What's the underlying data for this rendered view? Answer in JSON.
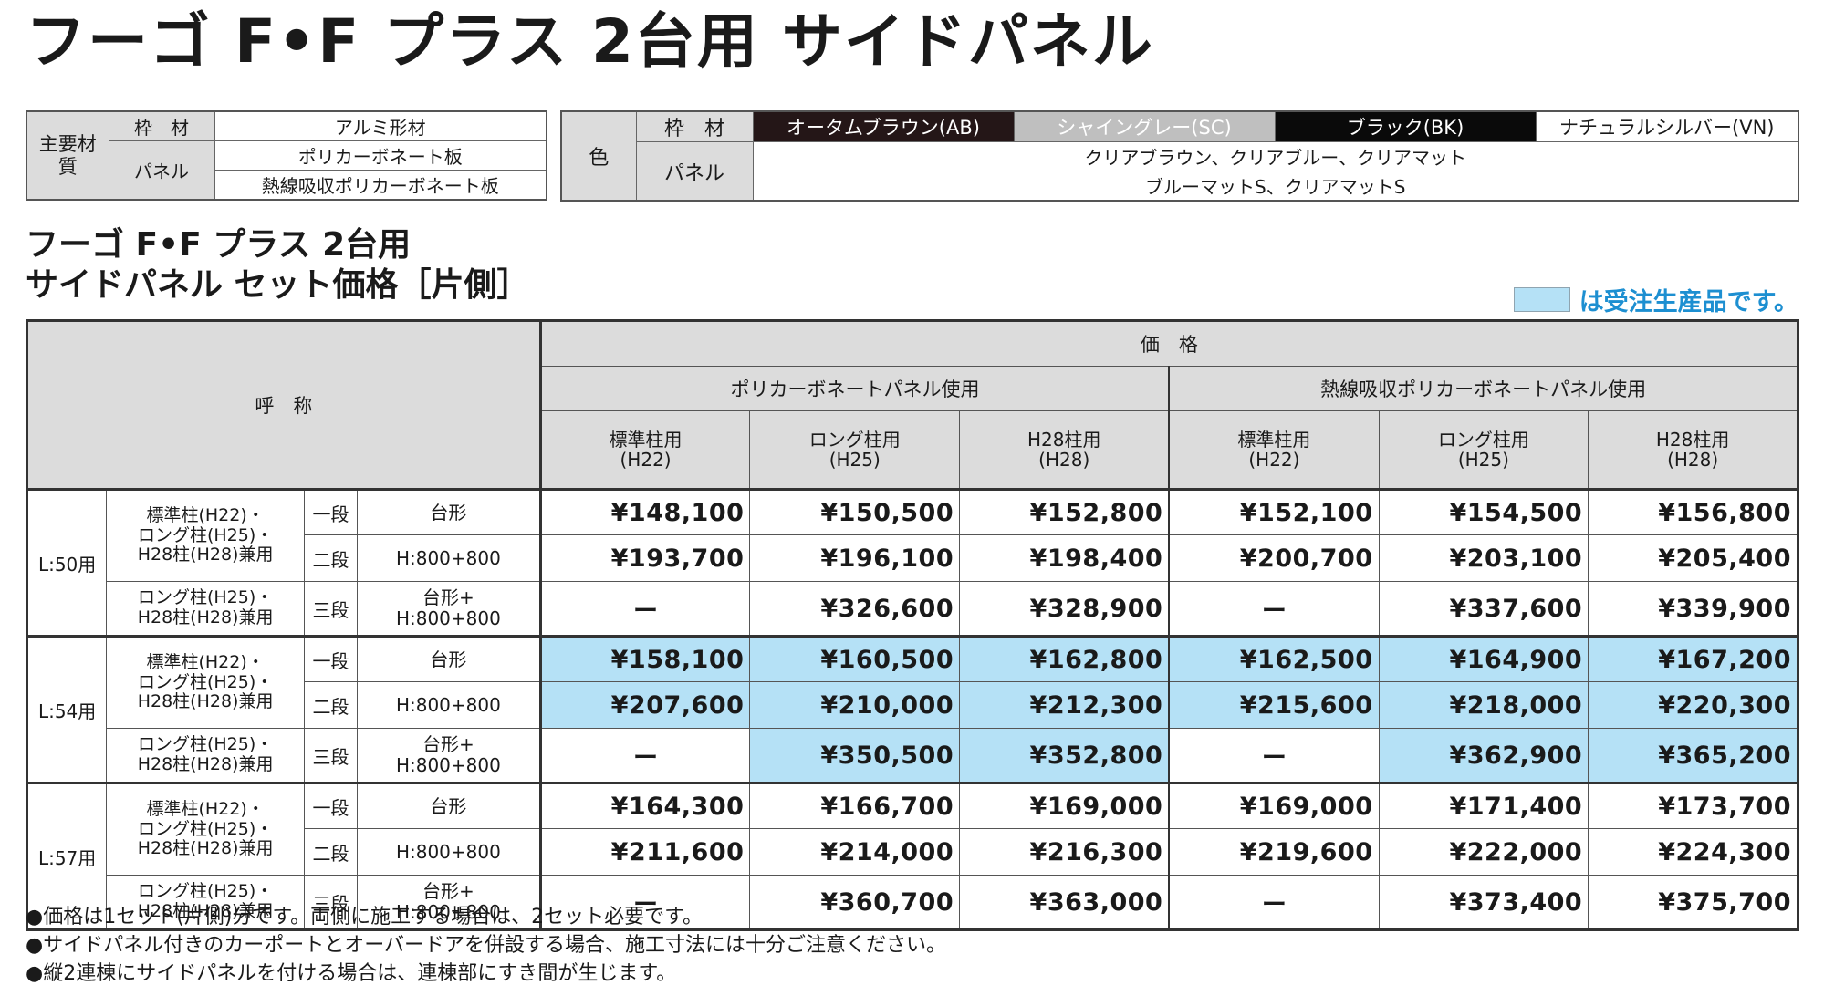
{
  "title": "フーゴ F•F プラス 2台用 サイドパネル",
  "materials": {
    "label": "主要材質",
    "rows": [
      {
        "part": "枠　材",
        "value": "アルミ形材"
      },
      {
        "part": "パネル",
        "values": [
          "ポリカーボネート板",
          "熱線吸収ポリカーボネート板"
        ]
      }
    ]
  },
  "colors": {
    "label": "色",
    "frame_label": "枠　材",
    "frame_colors": [
      {
        "name": "オータムブラウン(AB)",
        "bg": "#241617"
      },
      {
        "name": "シャイングレー(SC)",
        "bg": "#bfbfbf"
      },
      {
        "name": "ブラック(BK)",
        "bg": "#0a0a0a"
      },
      {
        "name": "ナチュラルシルバー(VN)",
        "bg": "#ffffff"
      }
    ],
    "panel_label": "パネル",
    "panel_colors": [
      "クリアブラウン、クリアブルー、クリアマット",
      "ブルーマットS、クリアマットS"
    ]
  },
  "subtitle": {
    "line1": "フーゴ F•F プラス 2台用",
    "line2": "サイドパネル セット価格［片側］"
  },
  "legend": {
    "text": "は受注生産品です。",
    "color": "#b5e1f6"
  },
  "price_table": {
    "col_name": "呼　称",
    "price_label": "価　格",
    "groups": [
      "ポリカーボネートパネル使用",
      "熱線吸収ポリカーボネートパネル使用"
    ],
    "post_types": [
      {
        "l1": "標準柱用",
        "l2": "(H22)"
      },
      {
        "l1": "ロング柱用",
        "l2": "(H25)"
      },
      {
        "l1": "H28柱用",
        "l2": "(H28)"
      }
    ],
    "sections": [
      {
        "size": "L:50用",
        "post_a": [
          "標準柱(H22)・",
          "ロング柱(H25)・",
          "H28柱(H28)兼用"
        ],
        "post_b": [
          "ロング柱(H25)・",
          "H28柱(H28)兼用"
        ],
        "rows": [
          {
            "tier": "一段",
            "type": [
              "台形"
            ],
            "prices": [
              "¥148,100",
              "¥150,500",
              "¥152,800",
              "¥152,100",
              "¥154,500",
              "¥156,800"
            ]
          },
          {
            "tier": "二段",
            "type": [
              "H:800+800"
            ],
            "prices": [
              "¥193,700",
              "¥196,100",
              "¥198,400",
              "¥200,700",
              "¥203,100",
              "¥205,400"
            ]
          },
          {
            "tier": "三段",
            "type": [
              "台形+",
              "H:800+800"
            ],
            "prices": [
              "ー",
              "¥326,600",
              "¥328,900",
              "ー",
              "¥337,600",
              "¥339,900"
            ]
          }
        ]
      },
      {
        "size": "L:54用",
        "post_a": [
          "標準柱(H22)・",
          "ロング柱(H25)・",
          "H28柱(H28)兼用"
        ],
        "post_b": [
          "ロング柱(H25)・",
          "H28柱(H28)兼用"
        ],
        "rows": [
          {
            "tier": "一段",
            "type": [
              "台形"
            ],
            "prices": [
              "¥158,100",
              "¥160,500",
              "¥162,800",
              "¥162,500",
              "¥164,900",
              "¥167,200"
            ]
          },
          {
            "tier": "二段",
            "type": [
              "H:800+800"
            ],
            "prices": [
              "¥207,600",
              "¥210,000",
              "¥212,300",
              "¥215,600",
              "¥218,000",
              "¥220,300"
            ]
          },
          {
            "tier": "三段",
            "type": [
              "台形+",
              "H:800+800"
            ],
            "prices": [
              "ー",
              "¥350,500",
              "¥352,800",
              "ー",
              "¥362,900",
              "¥365,200"
            ]
          }
        ]
      },
      {
        "size": "L:57用",
        "post_a": [
          "標準柱(H22)・",
          "ロング柱(H25)・",
          "H28柱(H28)兼用"
        ],
        "post_b": [
          "ロング柱(H25)・",
          "H28柱(H28)兼用"
        ],
        "rows": [
          {
            "tier": "一段",
            "type": [
              "台形"
            ],
            "prices": [
              "¥164,300",
              "¥166,700",
              "¥169,000",
              "¥169,000",
              "¥171,400",
              "¥173,700"
            ]
          },
          {
            "tier": "二段",
            "type": [
              "H:800+800"
            ],
            "prices": [
              "¥211,600",
              "¥214,000",
              "¥216,300",
              "¥219,600",
              "¥222,000",
              "¥224,300"
            ]
          },
          {
            "tier": "三段",
            "type": [
              "台形+",
              "H:800+800"
            ],
            "prices": [
              "ー",
              "¥360,700",
              "¥363,000",
              "ー",
              "¥373,400",
              "¥375,700"
            ]
          }
        ]
      }
    ]
  },
  "notes": [
    "●価格は1セット(片側)分です。両側に施工する場合は、2セット必要です。",
    "●サイドパネル付きのカーポートとオーバードアを併設する場合、施工寸法には十分ご注意ください。",
    "●縦2連棟にサイドパネルを付ける場合は、連棟部にすき間が生じます。"
  ]
}
